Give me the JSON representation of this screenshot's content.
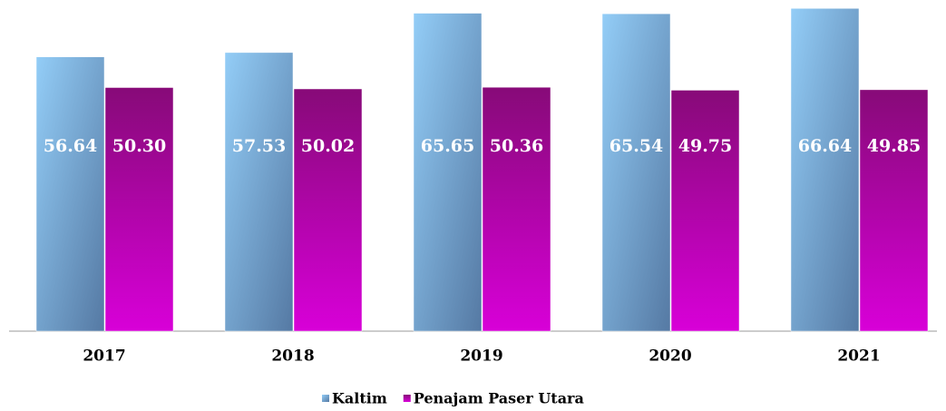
{
  "chart_data": {
    "type": "bar",
    "categories": [
      "2017",
      "2018",
      "2019",
      "2020",
      "2021"
    ],
    "series": [
      {
        "name": "Kaltim",
        "color": "#7fb6e6",
        "values": [
          56.64,
          57.53,
          65.65,
          65.54,
          66.64
        ],
        "value_labels": [
          "56.64",
          "57.53",
          "65.65",
          "65.54",
          "66.64"
        ]
      },
      {
        "name": "Penajam Paser Utara",
        "color": "#b000b0",
        "values": [
          50.3,
          50.02,
          50.36,
          49.75,
          49.85
        ],
        "value_labels": [
          "50.30",
          "50.02",
          "50.36",
          "49.75",
          "49.85"
        ]
      }
    ],
    "ylim": [
      0,
      68
    ]
  }
}
